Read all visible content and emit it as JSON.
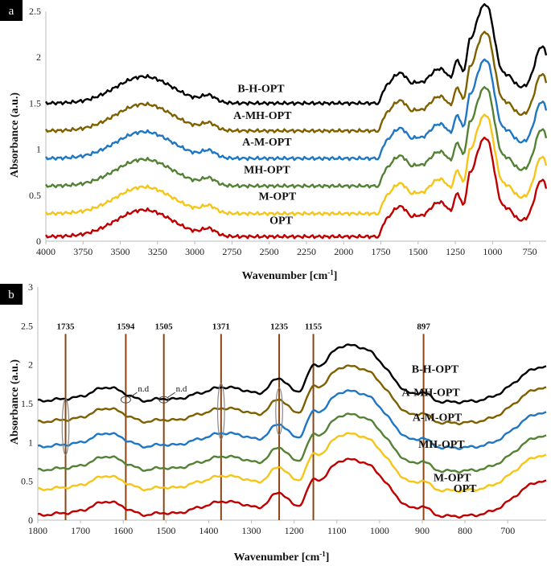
{
  "colors": {
    "B-H-OPT": "#000000",
    "A-MH-OPT": "#7f6000",
    "A-M-OPT": "#1f77c4",
    "MH-OPT": "#548235",
    "M-OPT": "#f5c518",
    "OPT": "#c00000",
    "marker_line": "#8b4513",
    "ellipse": "#888888"
  },
  "chart_data": [
    {
      "panel": "a",
      "type": "line",
      "title": "",
      "xlabel": "Wavenumber [cm",
      "xlabel_sup": "-1",
      "xlabel_close": "]",
      "ylabel": "Absorbance (a.u.)",
      "xlim": [
        4000,
        640
      ],
      "ylim": [
        0,
        2.5
      ],
      "xticks": [
        4000,
        3750,
        3500,
        3250,
        3000,
        2750,
        2500,
        2250,
        2000,
        1750,
        1500,
        1250,
        1000,
        750
      ],
      "yticks": [
        0,
        0.5,
        1,
        1.5,
        2,
        2.5
      ],
      "series": [
        {
          "name": "B-H-OPT",
          "offset": 1.5,
          "label_x": 2555,
          "label_y": 1.62
        },
        {
          "name": "A-MH-OPT",
          "offset": 1.2,
          "label_x": 2545,
          "label_y": 1.33
        },
        {
          "name": "A-M-OPT",
          "offset": 0.9,
          "label_x": 2515,
          "label_y": 1.04
        },
        {
          "name": "MH-OPT",
          "offset": 0.6,
          "label_x": 2515,
          "label_y": 0.74
        },
        {
          "name": "M-OPT",
          "offset": 0.3,
          "label_x": 2445,
          "label_y": 0.45
        },
        {
          "name": "OPT",
          "offset": 0.05,
          "label_x": 2420,
          "label_y": 0.19
        }
      ],
      "peaks": [
        {
          "x": 3340,
          "h": 0.29,
          "w": 190
        },
        {
          "x": 2905,
          "h": 0.07,
          "w": 45
        },
        {
          "x": 1640,
          "h": 0.13,
          "w": 40
        },
        {
          "x": 1590,
          "h": 0.07,
          "w": 30
        },
        {
          "x": 1510,
          "h": 0.05,
          "w": 25
        },
        {
          "x": 1420,
          "h": 0.1,
          "w": 40
        },
        {
          "x": 1370,
          "h": 0.12,
          "w": 30
        },
        {
          "x": 1320,
          "h": 0.14,
          "w": 30
        },
        {
          "x": 1235,
          "h": 0.3,
          "w": 25
        },
        {
          "x": 1160,
          "h": 0.3,
          "w": 20
        },
        {
          "x": 1110,
          "h": 0.4,
          "w": 35
        },
        {
          "x": 1035,
          "h": 0.85,
          "w": 50
        },
        {
          "x": 895,
          "h": 0.12,
          "w": 35
        },
        {
          "x": 670,
          "h": 0.45,
          "w": 45
        }
      ],
      "step": {
        "start": 1755,
        "width": 10,
        "height": 0.17
      },
      "panel_letter": "a"
    },
    {
      "panel": "b",
      "type": "line",
      "title": "",
      "xlabel": "Wavenumber [cm",
      "xlabel_sup": "-1",
      "xlabel_close": "]",
      "ylabel": "Absorbance (a.u.)",
      "xlim": [
        1800,
        610
      ],
      "ylim": [
        0,
        3
      ],
      "xticks": [
        1800,
        1700,
        1600,
        1500,
        1400,
        1300,
        1200,
        1100,
        1000,
        900,
        800,
        700
      ],
      "yticks": [
        0,
        0.5,
        1,
        1.5,
        2,
        2.5,
        3
      ],
      "series": [
        {
          "name": "B-H-OPT",
          "offset": 1.52,
          "label_x": 870,
          "label_y": 1.9
        },
        {
          "name": "A-MH-OPT",
          "offset": 1.25,
          "label_x": 880,
          "label_y": 1.6
        },
        {
          "name": "A-M-OPT",
          "offset": 0.93,
          "label_x": 865,
          "label_y": 1.28
        },
        {
          "name": "MH-OPT",
          "offset": 0.63,
          "label_x": 855,
          "label_y": 0.93
        },
        {
          "name": "M-OPT",
          "offset": 0.38,
          "label_x": 830,
          "label_y": 0.5
        },
        {
          "name": "OPT",
          "offset": 0.05,
          "label_x": 800,
          "label_y": 0.36
        }
      ],
      "peaks": [
        {
          "x": 1700,
          "h": 0.05,
          "w": 60
        },
        {
          "x": 1640,
          "h": 0.15,
          "w": 30
        },
        {
          "x": 1595,
          "h": 0.05,
          "w": 25
        },
        {
          "x": 1510,
          "h": 0.04,
          "w": 20
        },
        {
          "x": 1420,
          "h": 0.1,
          "w": 35
        },
        {
          "x": 1370,
          "h": 0.12,
          "w": 25
        },
        {
          "x": 1320,
          "h": 0.14,
          "w": 30
        },
        {
          "x": 1235,
          "h": 0.3,
          "w": 25
        },
        {
          "x": 1160,
          "h": 0.25,
          "w": 15
        },
        {
          "x": 1110,
          "h": 0.38,
          "w": 35
        },
        {
          "x": 1035,
          "h": 0.65,
          "w": 55
        },
        {
          "x": 897,
          "h": 0.1,
          "w": 15
        },
        {
          "x": 620,
          "h": 0.45,
          "w": 60
        }
      ],
      "markers": [
        {
          "x": 1735,
          "label": "1735"
        },
        {
          "x": 1594,
          "label": "1594"
        },
        {
          "x": 1505,
          "label": "1505"
        },
        {
          "x": 1371,
          "label": "1371"
        },
        {
          "x": 1235,
          "label": "1235"
        },
        {
          "x": 1155,
          "label": "1155"
        },
        {
          "x": 897,
          "label": "897"
        }
      ],
      "marker_label_y": 2.5,
      "annotations": [
        {
          "x": 1594,
          "y": 1.55,
          "text": "n.d"
        },
        {
          "x": 1505,
          "y": 1.55,
          "text": "n.d"
        }
      ],
      "ellipses": [
        {
          "x": 1735,
          "y": 1.2,
          "rx_units": 8,
          "ry_units": 0.36
        },
        {
          "x": 1371,
          "y": 1.4,
          "rx_units": 8,
          "ry_units": 0.36
        },
        {
          "x": 1235,
          "y": 1.4,
          "rx_units": 8,
          "ry_units": 0.3
        }
      ],
      "panel_letter": "b"
    }
  ]
}
